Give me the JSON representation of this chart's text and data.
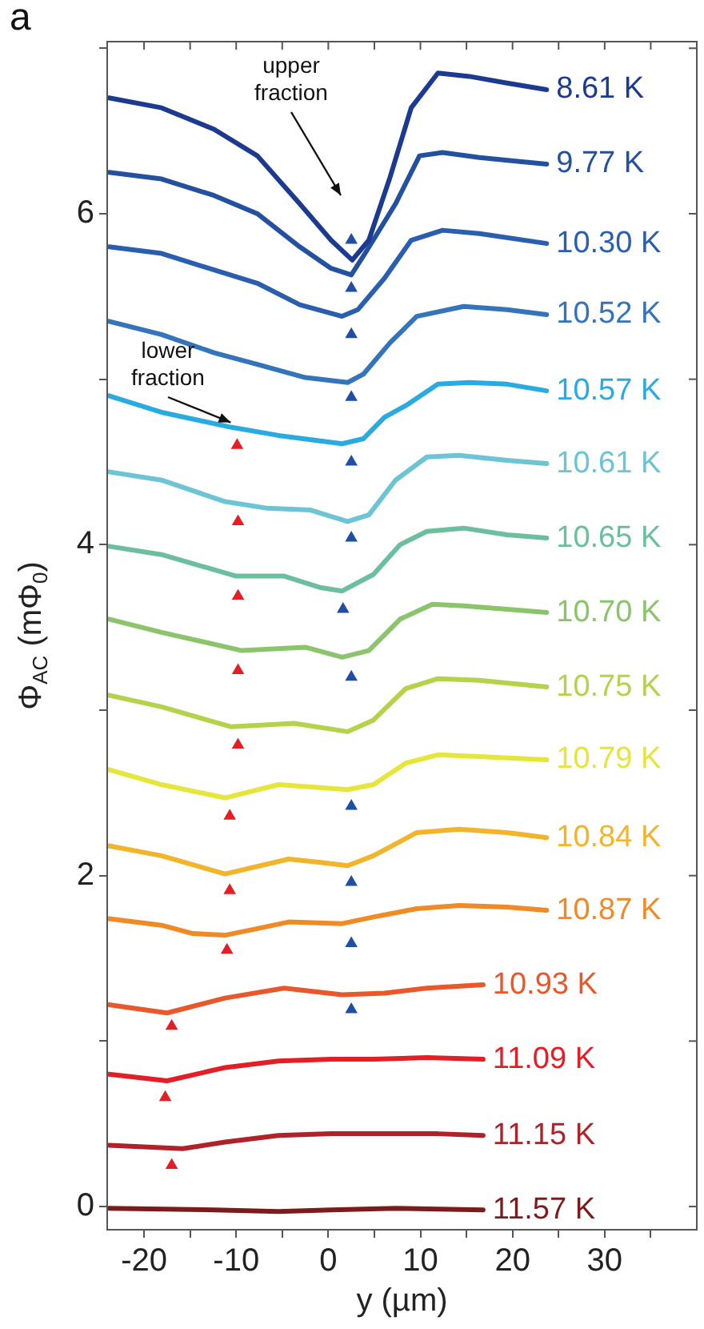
{
  "chart_data": {
    "type": "line",
    "xlabel": "y (µm)",
    "ylabel": "Φ$_{AC}$ (mΦ$_{0}$)",
    "xlim": [
      -24,
      40
    ],
    "ylim": [
      -0.14,
      7.04
    ],
    "xticks": [
      -20,
      {
        "value": -15,
        "label": null
      },
      -10,
      {
        "value": -5,
        "label": null
      },
      0,
      {
        "value": 5,
        "label": null
      },
      10,
      {
        "value": 15,
        "label": null
      },
      20,
      {
        "value": 25,
        "label": null
      },
      30,
      {
        "value": 35,
        "label": null
      }
    ],
    "yticks": [
      0,
      {
        "value": 1,
        "label": null
      },
      2,
      {
        "value": 3,
        "label": null
      },
      4,
      {
        "value": 5,
        "label": null
      },
      6,
      {
        "value": 7,
        "label": null
      }
    ],
    "grid": false,
    "legend": false,
    "marker": "none",
    "line_style": "solid",
    "annotations": [
      "a",
      "upper fraction",
      {
        "text": "lower fraction",
        "x": -10.6,
        "y": 4.71
      }
    ],
    "series": [
      {
        "name": "8.61 K",
        "color": "#1b3a90",
        "x": [
          -23.8,
          -18.1,
          -12.4,
          -7.7,
          -3.1,
          0.3,
          2.6,
          4.4,
          6.7,
          9.0,
          11.9,
          15.3,
          19.4,
          23.7
        ],
        "values": [
          6.7,
          6.64,
          6.51,
          6.35,
          6.06,
          5.84,
          5.72,
          5.84,
          6.22,
          6.64,
          6.85,
          6.83,
          6.79,
          6.75
        ]
      },
      {
        "name": "9.77 K",
        "color": "#2450a0",
        "x": [
          -23.8,
          -18.1,
          -12.4,
          -7.7,
          -3.1,
          0.3,
          2.5,
          4.1,
          7.3,
          9.9,
          12.4,
          16.4,
          19.9,
          23.7
        ],
        "values": [
          6.25,
          6.21,
          6.11,
          6.0,
          5.8,
          5.67,
          5.63,
          5.77,
          6.06,
          6.35,
          6.37,
          6.34,
          6.32,
          6.3
        ]
      },
      {
        "name": "10.30 K",
        "color": "#2a5eae",
        "x": [
          -23.8,
          -18.1,
          -12.4,
          -7.7,
          -3.1,
          1.5,
          3.2,
          6.1,
          9.0,
          12.4,
          16.4,
          23.7
        ],
        "values": [
          5.8,
          5.76,
          5.66,
          5.58,
          5.45,
          5.38,
          5.42,
          5.61,
          5.84,
          5.9,
          5.88,
          5.82
        ]
      },
      {
        "name": "10.52 K",
        "color": "#3374bb",
        "x": [
          -23.8,
          -18.1,
          -12.4,
          -7.7,
          -2.5,
          2.1,
          3.8,
          6.7,
          9.6,
          14.7,
          19.4,
          23.7
        ],
        "values": [
          5.35,
          5.27,
          5.16,
          5.09,
          5.01,
          4.98,
          5.03,
          5.22,
          5.38,
          5.44,
          5.42,
          5.39
        ]
      },
      {
        "name": "10.57 K",
        "color": "#29abe2",
        "x": [
          -23.8,
          -18.1,
          -10.6,
          -5.4,
          1.5,
          3.8,
          6.1,
          8.4,
          11.9,
          15.3,
          19.4,
          23.7
        ],
        "values": [
          4.9,
          4.8,
          4.71,
          4.66,
          4.61,
          4.64,
          4.77,
          4.84,
          4.97,
          4.98,
          4.97,
          4.93
        ]
      },
      {
        "name": "10.61 K",
        "color": "#6cc4d4",
        "x": [
          -23.8,
          -18.1,
          -11.2,
          -6.6,
          -2.0,
          2.1,
          4.4,
          7.3,
          10.7,
          14.2,
          19.4,
          23.7
        ],
        "values": [
          4.44,
          4.39,
          4.26,
          4.22,
          4.21,
          4.14,
          4.18,
          4.39,
          4.53,
          4.54,
          4.51,
          4.49
        ]
      },
      {
        "name": "10.65 K",
        "color": "#6cbf9e",
        "x": [
          -23.8,
          -18.1,
          -10.0,
          -4.8,
          -0.8,
          1.5,
          4.9,
          7.8,
          10.7,
          14.7,
          19.4,
          23.7
        ],
        "values": [
          3.99,
          3.94,
          3.81,
          3.81,
          3.74,
          3.72,
          3.82,
          4.0,
          4.08,
          4.1,
          4.06,
          4.04
        ]
      },
      {
        "name": "10.70 K",
        "color": "#8cc46c",
        "x": [
          -23.8,
          -18.1,
          -9.4,
          -2.5,
          1.5,
          4.4,
          7.8,
          11.3,
          14.7,
          19.4,
          23.7
        ],
        "values": [
          3.55,
          3.47,
          3.36,
          3.38,
          3.32,
          3.36,
          3.55,
          3.64,
          3.63,
          3.61,
          3.59
        ]
      },
      {
        "name": "10.75 K",
        "color": "#b4d24a",
        "x": [
          -23.8,
          -18.1,
          -10.6,
          -3.7,
          2.1,
          4.9,
          8.4,
          11.9,
          16.4,
          23.7
        ],
        "values": [
          3.09,
          3.02,
          2.9,
          2.92,
          2.87,
          2.94,
          3.13,
          3.19,
          3.18,
          3.14
        ]
      },
      {
        "name": "10.79 K",
        "color": "#e6e63a",
        "x": [
          -23.8,
          -18.1,
          -11.2,
          -5.4,
          2.1,
          4.9,
          8.4,
          11.9,
          16.4,
          23.7
        ],
        "values": [
          2.64,
          2.55,
          2.47,
          2.55,
          2.52,
          2.55,
          2.68,
          2.73,
          2.72,
          2.7
        ]
      },
      {
        "name": "10.84 K",
        "color": "#f2b42a",
        "x": [
          -23.8,
          -18.1,
          -11.2,
          -4.3,
          -0.8,
          2.1,
          4.9,
          9.6,
          14.2,
          19.4,
          23.7
        ],
        "values": [
          2.18,
          2.12,
          2.01,
          2.1,
          2.08,
          2.06,
          2.12,
          2.26,
          2.28,
          2.26,
          2.23
        ]
      },
      {
        "name": "10.87 K",
        "color": "#ef8a25",
        "x": [
          -23.8,
          -18.1,
          -14.7,
          -11.2,
          -7.7,
          -4.3,
          1.5,
          4.9,
          9.6,
          14.2,
          19.4,
          23.7
        ],
        "values": [
          1.74,
          1.7,
          1.65,
          1.64,
          1.68,
          1.72,
          1.71,
          1.75,
          1.8,
          1.82,
          1.81,
          1.79
        ]
      },
      {
        "name": "10.93 K",
        "color": "#e8582a",
        "x": [
          -23.8,
          -17.5,
          -11.2,
          -4.8,
          1.5,
          6.1,
          10.7,
          16.8
        ],
        "values": [
          1.22,
          1.17,
          1.26,
          1.32,
          1.28,
          1.29,
          1.32,
          1.34
        ]
      },
      {
        "name": "11.09 K",
        "color": "#e31e24",
        "x": [
          -23.8,
          -17.5,
          -11.2,
          -5.4,
          0.3,
          4.9,
          10.7,
          16.8
        ],
        "values": [
          0.8,
          0.76,
          0.84,
          0.88,
          0.89,
          0.89,
          0.9,
          0.89
        ]
      },
      {
        "name": "11.15 K",
        "color": "#b0222a",
        "x": [
          -23.8,
          -15.8,
          -11.2,
          -5.4,
          0.3,
          6.1,
          11.9,
          16.8
        ],
        "values": [
          0.37,
          0.35,
          0.39,
          0.43,
          0.44,
          0.44,
          0.44,
          0.43
        ]
      },
      {
        "name": "11.57 K",
        "color": "#7a1c1e",
        "x": [
          -23.8,
          -12.4,
          -5.4,
          0.3,
          7.3,
          16.8
        ],
        "values": [
          -0.01,
          -0.02,
          -0.03,
          -0.02,
          -0.01,
          -0.02
        ]
      },
      {
        "type": "scatter",
        "marker": "triangle",
        "color": "#1f4ea3",
        "x": [
          2.5,
          2.5,
          2.5,
          2.5,
          2.5,
          2.5,
          1.6,
          2.5,
          2.5,
          2.5,
          2.5,
          2.5
        ],
        "values": [
          5.84,
          5.55,
          5.27,
          4.89,
          4.5,
          4.04,
          3.61,
          3.2,
          2.42,
          1.96,
          1.59,
          1.19
        ]
      },
      {
        "type": "scatter",
        "marker": "triangle",
        "color": "#e31e24",
        "x": [
          -9.9,
          -9.8,
          -9.8,
          -9.8,
          -9.8,
          -10.7,
          -10.7,
          -11.0,
          -17.0,
          -17.7,
          -17.0
        ],
        "values": [
          4.6,
          4.14,
          3.69,
          3.24,
          2.79,
          2.36,
          1.91,
          1.55,
          1.09,
          0.66,
          0.25
        ]
      }
    ]
  }
}
